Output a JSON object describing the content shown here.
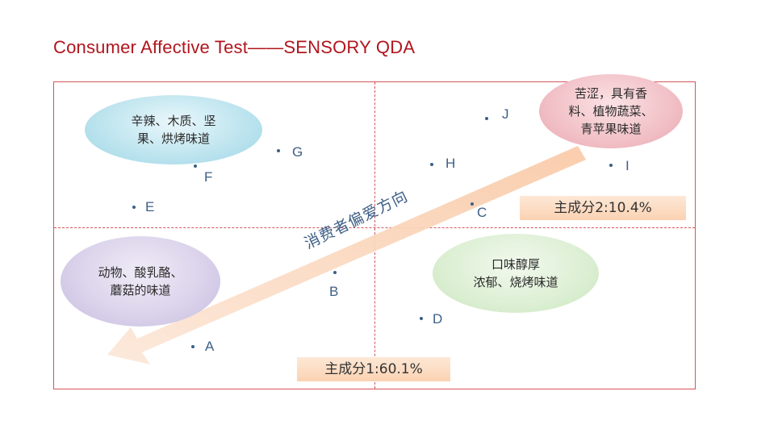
{
  "title": "Consumer Affective Test——SENSORY QDA",
  "arrow_label": "消费者偏爱方向",
  "principal_components": {
    "pc1": "主成分1:60.1%",
    "pc2": "主成分2:10.4%"
  },
  "attributes": {
    "upper_left": [
      "辛辣、木质、坚",
      "果、烘烤味道"
    ],
    "upper_right": [
      "苦涩，具有香",
      "料、植物蔬菜、",
      "青苹果味道"
    ],
    "lower_left": [
      "动物、酸乳酪、",
      "蘑菇的味道"
    ],
    "lower_right": [
      "口味醇厚",
      "浓郁、烧烤味道"
    ]
  },
  "samples": [
    {
      "label": "A"
    },
    {
      "label": "B"
    },
    {
      "label": "C"
    },
    {
      "label": "D"
    },
    {
      "label": "E"
    },
    {
      "label": "F"
    },
    {
      "label": "G"
    },
    {
      "label": "H"
    },
    {
      "label": "I"
    },
    {
      "label": "J"
    }
  ],
  "colors": {
    "title": "#b0151d",
    "frame": "#d4555a",
    "point": "#3a5f86",
    "arrow": "#fbd6bd"
  }
}
